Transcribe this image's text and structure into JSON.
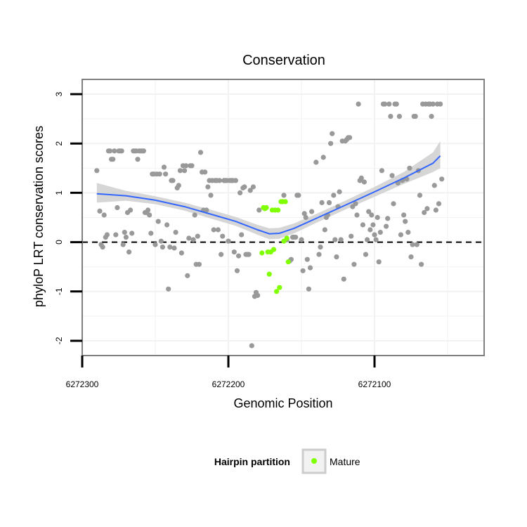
{
  "chart_data": {
    "type": "scatter",
    "title": "Conservation",
    "xlabel": "Genomic Position",
    "ylabel": "phyloP LRT conservation scores",
    "x_reversed": true,
    "xlim": [
      6272300,
      6272025
    ],
    "ylim": [
      -2.3,
      3.3
    ],
    "x_ticks": [
      6272300,
      6272200,
      6272100
    ],
    "y_ticks": [
      -2,
      -1,
      0,
      1,
      2,
      3
    ],
    "grid": true,
    "reference_line": {
      "y": 0,
      "style": "dashed"
    },
    "legend": {
      "title": "Hairpin partition",
      "entries": [
        "Mature"
      ],
      "placement": "bottom"
    },
    "colors": {
      "other": "#999999",
      "mature": "#7fff00",
      "smooth": "#3366ff",
      "ribbon": "#cccccc",
      "panel_border": "#7f7f7f",
      "grid": "#f2f2f2"
    },
    "series": [
      {
        "name": "",
        "color": "#999999",
        "points": [
          [
            6272290,
            1.45
          ],
          [
            6272288,
            0.63
          ],
          [
            6272287,
            -0.05
          ],
          [
            6272286,
            -0.1
          ],
          [
            6272285,
            0.55
          ],
          [
            6272284,
            0.1
          ],
          [
            6272283,
            0.15
          ],
          [
            6272282,
            1.85
          ],
          [
            6272281,
            1.85
          ],
          [
            6272280,
            1.68
          ],
          [
            6272279,
            1.68
          ],
          [
            6272278,
            1.85
          ],
          [
            6272277,
            0.15
          ],
          [
            6272276,
            0.7
          ],
          [
            6272275,
            1.85
          ],
          [
            6272274,
            1.85
          ],
          [
            6272273,
            1.85
          ],
          [
            6272272,
            -0.05
          ],
          [
            6272271,
            0.2
          ],
          [
            6272270,
            0.1
          ],
          [
            6272269,
            0.6
          ],
          [
            6272268,
            -0.2
          ],
          [
            6272267,
            0.65
          ],
          [
            6272266,
            0.18
          ],
          [
            6272265,
            1.85
          ],
          [
            6272264,
            1.85
          ],
          [
            6272263,
            1.85
          ],
          [
            6272262,
            1.68
          ],
          [
            6272261,
            1.85
          ],
          [
            6272260,
            1.85
          ],
          [
            6272259,
            1.85
          ],
          [
            6272258,
            1.85
          ],
          [
            6272257,
            0.6
          ],
          [
            6272256,
            0.6
          ],
          [
            6272255,
            0.65
          ],
          [
            6272254,
            0.55
          ],
          [
            6272253,
            0.18
          ],
          [
            6272252,
            1.38
          ],
          [
            6272251,
            1.38
          ],
          [
            6272250,
            -0.05
          ],
          [
            6272249,
            1.38
          ],
          [
            6272248,
            0.42
          ],
          [
            6272247,
            1.38
          ],
          [
            6272246,
            0.02
          ],
          [
            6272245,
            -0.1
          ],
          [
            6272244,
            1.52
          ],
          [
            6272243,
            1.38
          ],
          [
            6272242,
            0.35
          ],
          [
            6272241,
            -0.95
          ],
          [
            6272240,
            -0.1
          ],
          [
            6272239,
            1.25
          ],
          [
            6272238,
            1.25
          ],
          [
            6272237,
            -0.12
          ],
          [
            6272236,
            0.2
          ],
          [
            6272235,
            1.1
          ],
          [
            6272234,
            1.15
          ],
          [
            6272233,
            1.45
          ],
          [
            6272232,
            -0.22
          ],
          [
            6272231,
            1.55
          ],
          [
            6272230,
            1.45
          ],
          [
            6272229,
            1.55
          ],
          [
            6272228,
            -0.68
          ],
          [
            6272227,
            0.08
          ],
          [
            6272226,
            1.55
          ],
          [
            6272225,
            1.55
          ],
          [
            6272224,
            0.05
          ],
          [
            6272223,
            0.55
          ],
          [
            6272222,
            -0.45
          ],
          [
            6272221,
            0.12
          ],
          [
            6272220,
            -0.45
          ],
          [
            6272219,
            1.82
          ],
          [
            6272218,
            1.42
          ],
          [
            6272217,
            0.65
          ],
          [
            6272216,
            1.42
          ],
          [
            6272215,
            0.65
          ],
          [
            6272214,
            1.12
          ],
          [
            6272213,
            1.25
          ],
          [
            6272212,
            0.95
          ],
          [
            6272211,
            1.25
          ],
          [
            6272210,
            0.25
          ],
          [
            6272209,
            1.25
          ],
          [
            6272208,
            1.25
          ],
          [
            6272207,
            0.25
          ],
          [
            6272206,
            1.25
          ],
          [
            6272205,
            -0.25
          ],
          [
            6272204,
            0.12
          ],
          [
            6272203,
            1.25
          ],
          [
            6272202,
            1.25
          ],
          [
            6272201,
            1.25
          ],
          [
            6272200,
            0.02
          ],
          [
            6272199,
            1.25
          ],
          [
            6272198,
            1.25
          ],
          [
            6272197,
            1.25
          ],
          [
            6272196,
            -0.2
          ],
          [
            6272195,
            1.25
          ],
          [
            6272194,
            -0.58
          ],
          [
            6272193,
            -0.28
          ],
          [
            6272192,
            1.0
          ],
          [
            6272191,
            0.15
          ],
          [
            6272190,
            1.1
          ],
          [
            6272189,
            1.12
          ],
          [
            6272188,
            -0.25
          ],
          [
            6272187,
            -0.25
          ],
          [
            6272186,
            -0.25
          ],
          [
            6272185,
            1.05
          ],
          [
            6272184,
            -2.1
          ],
          [
            6272183,
            1.12
          ],
          [
            6272182,
            -1.1
          ],
          [
            6272181,
            -1.02
          ],
          [
            6272180,
            -1.08
          ],
          [
            6272179,
            0.65
          ],
          [
            6272162,
            0.95
          ],
          [
            6272160,
            0.05
          ],
          [
            6272158,
            -0.38
          ],
          [
            6272157,
            -0.35
          ],
          [
            6272156,
            0.1
          ],
          [
            6272155,
            0.1
          ],
          [
            6272154,
            0.1
          ],
          [
            6272153,
            0.95
          ],
          [
            6272152,
            0.95
          ],
          [
            6272150,
            0.05
          ],
          [
            6272149,
            -0.58
          ],
          [
            6272148,
            0.58
          ],
          [
            6272147,
            0.5
          ],
          [
            6272146,
            -0.35
          ],
          [
            6272145,
            -0.95
          ],
          [
            6272144,
            -0.52
          ],
          [
            6272143,
            0.62
          ],
          [
            6272140,
            1.62
          ],
          [
            6272138,
            -0.25
          ],
          [
            6272137,
            -0.1
          ],
          [
            6272136,
            0.8
          ],
          [
            6272135,
            1.72
          ],
          [
            6272134,
            0.25
          ],
          [
            6272133,
            0.5
          ],
          [
            6272132,
            0.55
          ],
          [
            6272131,
            0.8
          ],
          [
            6272130,
            2.0
          ],
          [
            6272129,
            2.2
          ],
          [
            6272128,
            0.95
          ],
          [
            6272127,
            0.05
          ],
          [
            6272126,
            -0.3
          ],
          [
            6272125,
            0.72
          ],
          [
            6272124,
            1.02
          ],
          [
            6272123,
            0.05
          ],
          [
            6272122,
            2.05
          ],
          [
            6272121,
            -0.75
          ],
          [
            6272120,
            2.05
          ],
          [
            6272119,
            2.08
          ],
          [
            6272118,
            2.12
          ],
          [
            6272117,
            2.12
          ],
          [
            6272116,
            0.12
          ],
          [
            6272115,
            0.72
          ],
          [
            6272114,
            -0.45
          ],
          [
            6272113,
            0.78
          ],
          [
            6272112,
            0.55
          ],
          [
            6272111,
            2.8
          ],
          [
            6272110,
            1.25
          ],
          [
            6272109,
            1.3
          ],
          [
            6272108,
            0.35
          ],
          [
            6272107,
            1.22
          ],
          [
            6272106,
            -0.25
          ],
          [
            6272105,
            0.05
          ],
          [
            6272104,
            0.62
          ],
          [
            6272103,
            0.25
          ],
          [
            6272102,
            0.55
          ],
          [
            6272101,
            0.35
          ],
          [
            6272100,
            0.15
          ],
          [
            6272099,
            0.05
          ],
          [
            6272098,
            0.5
          ],
          [
            6272097,
            -0.4
          ],
          [
            6272096,
            0.2
          ],
          [
            6272095,
            1.45
          ],
          [
            6272094,
            2.8
          ],
          [
            6272093,
            2.8
          ],
          [
            6272092,
            0.32
          ],
          [
            6272091,
            0.48
          ],
          [
            6272090,
            2.8
          ],
          [
            6272089,
            2.55
          ],
          [
            6272088,
            1.35
          ],
          [
            6272087,
            0.78
          ],
          [
            6272086,
            2.8
          ],
          [
            6272085,
            2.8
          ],
          [
            6272084,
            1.2
          ],
          [
            6272083,
            2.55
          ],
          [
            6272082,
            0.15
          ],
          [
            6272081,
            1.25
          ],
          [
            6272080,
            0.55
          ],
          [
            6272079,
            0.42
          ],
          [
            6272078,
            1.28
          ],
          [
            6272077,
            0.2
          ],
          [
            6272076,
            1.5
          ],
          [
            6272075,
            -0.3
          ],
          [
            6272074,
            -0.05
          ],
          [
            6272073,
            2.55
          ],
          [
            6272072,
            2.55
          ],
          [
            6272071,
            -0.05
          ],
          [
            6272070,
            1.45
          ],
          [
            6272069,
            0.95
          ],
          [
            6272068,
            -0.45
          ],
          [
            6272067,
            2.8
          ],
          [
            6272066,
            0.6
          ],
          [
            6272065,
            2.8
          ],
          [
            6272064,
            0.68
          ],
          [
            6272063,
            2.8
          ],
          [
            6272062,
            2.8
          ],
          [
            6272061,
            2.55
          ],
          [
            6272060,
            2.8
          ],
          [
            6272059,
            1.15
          ],
          [
            6272058,
            0.65
          ],
          [
            6272057,
            2.8
          ],
          [
            6272056,
            0.78
          ],
          [
            6272055,
            2.8
          ],
          [
            6272054,
            1.28
          ]
        ]
      },
      {
        "name": "Mature",
        "color": "#7fff00",
        "points": [
          [
            6272177,
            -0.22
          ],
          [
            6272176,
            0.7
          ],
          [
            6272175,
            0.68
          ],
          [
            6272174,
            0.7
          ],
          [
            6272173,
            -0.2
          ],
          [
            6272172,
            -0.65
          ],
          [
            6272171,
            -0.2
          ],
          [
            6272170,
            0.65
          ],
          [
            6272169,
            -0.15
          ],
          [
            6272168,
            0.65
          ],
          [
            6272167,
            -1.0
          ],
          [
            6272166,
            0.65
          ],
          [
            6272165,
            -0.92
          ],
          [
            6272164,
            0.82
          ],
          [
            6272163,
            0.82
          ],
          [
            6272162,
            0.02
          ],
          [
            6272161,
            0.82
          ],
          [
            6272160,
            0.08
          ],
          [
            6272159,
            -0.4
          ]
        ]
      }
    ],
    "smooth": {
      "x": [
        6272290,
        6272270,
        6272250,
        6272230,
        6272210,
        6272195,
        6272180,
        6272172,
        6272165,
        6272155,
        6272140,
        6272120,
        6272100,
        6272080,
        6272060,
        6272055
      ],
      "y": [
        0.98,
        0.94,
        0.85,
        0.72,
        0.55,
        0.42,
        0.25,
        0.17,
        0.18,
        0.28,
        0.48,
        0.75,
        1.02,
        1.3,
        1.6,
        1.75
      ],
      "ci_lower": [
        0.8,
        0.84,
        0.77,
        0.64,
        0.46,
        0.33,
        0.15,
        0.06,
        0.07,
        0.18,
        0.39,
        0.66,
        0.92,
        1.18,
        1.42,
        1.5
      ],
      "ci_upper": [
        1.2,
        1.04,
        0.93,
        0.8,
        0.64,
        0.51,
        0.35,
        0.28,
        0.29,
        0.38,
        0.57,
        0.84,
        1.12,
        1.42,
        1.82,
        2.05
      ]
    }
  }
}
